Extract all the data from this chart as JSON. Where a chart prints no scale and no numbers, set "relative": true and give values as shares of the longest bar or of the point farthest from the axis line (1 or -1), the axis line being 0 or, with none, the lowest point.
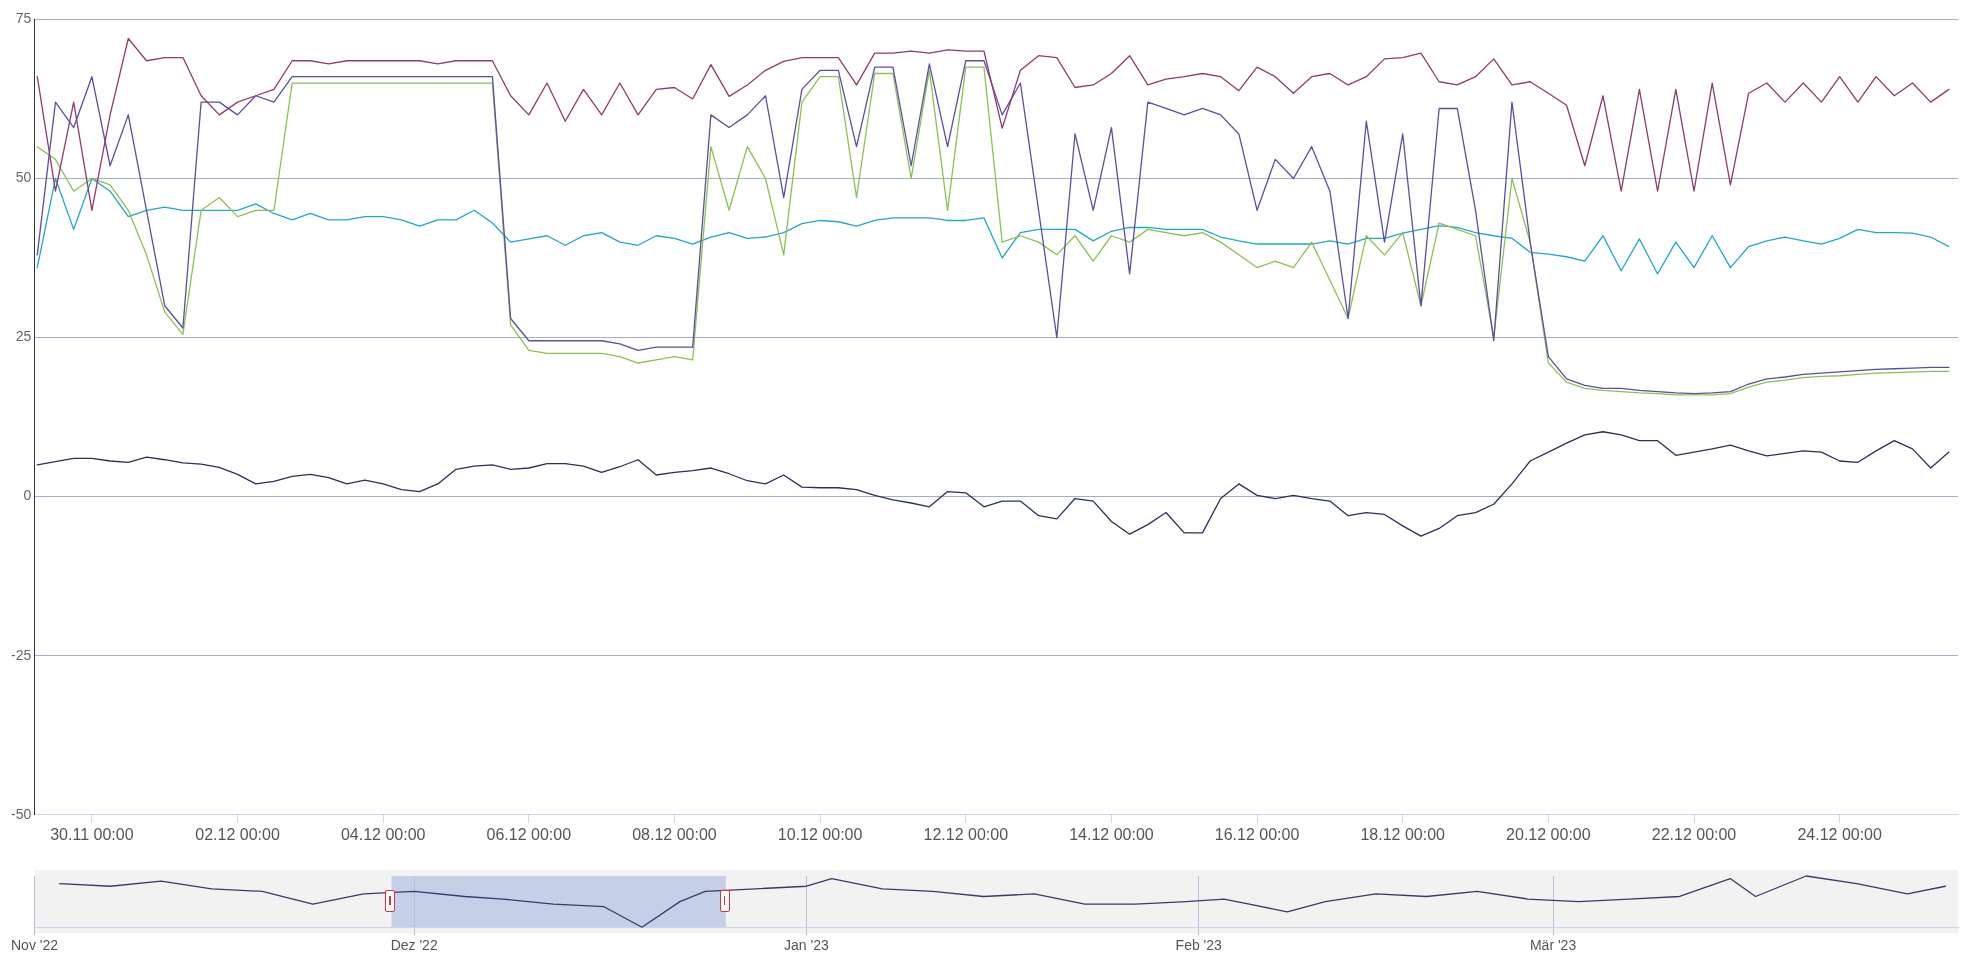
{
  "chart_data": [
    {
      "type": "line",
      "x": [
        "--11-29T06:00",
        "--11-29T12:00",
        "--11-29T18:00",
        "--11-30T00:00",
        "--11-30T06:00",
        "--11-30T12:00",
        "--11-30T18:00",
        "--12-01T00:00",
        "--12-01T06:00",
        "--12-01T12:00",
        "--12-01T18:00",
        "--12-02T00:00",
        "--12-02T06:00",
        "--12-02T12:00",
        "--12-02T18:00",
        "--12-03T00:00",
        "--12-03T06:00",
        "--12-03T12:00",
        "--12-03T18:00",
        "--12-04T00:00",
        "--12-04T06:00",
        "--12-04T12:00",
        "--12-04T18:00",
        "--12-05T00:00",
        "--12-05T06:00",
        "--12-05T12:00",
        "--12-05T18:00",
        "--12-06T00:00",
        "--12-06T06:00",
        "--12-06T12:00",
        "--12-06T18:00",
        "--12-07T00:00",
        "--12-07T06:00",
        "--12-07T12:00",
        "--12-07T18:00",
        "--12-08T00:00",
        "--12-08T06:00",
        "--12-08T12:00",
        "--12-08T18:00",
        "--12-09T00:00",
        "--12-09T06:00",
        "--12-09T12:00",
        "--12-09T18:00",
        "--12-10T00:00",
        "--12-10T06:00",
        "--12-10T12:00",
        "--12-10T18:00",
        "--12-11T00:00",
        "--12-11T06:00",
        "--12-11T12:00",
        "--12-11T18:00",
        "--12-12T00:00",
        "--12-12T06:00",
        "--12-12T12:00",
        "--12-12T18:00",
        "--12-13T00:00",
        "--12-13T06:00",
        "--12-13T12:00",
        "--12-13T18:00",
        "--12-14T00:00",
        "--12-14T06:00",
        "--12-14T12:00",
        "--12-14T18:00",
        "--12-15T00:00",
        "--12-15T06:00",
        "--12-15T12:00",
        "--12-15T18:00",
        "--12-16T00:00",
        "--12-16T06:00",
        "--12-16T12:00",
        "--12-16T18:00",
        "--12-17T00:00",
        "--12-17T06:00",
        "--12-17T12:00",
        "--12-17T18:00",
        "--12-18T00:00",
        "--12-18T06:00",
        "--12-18T12:00",
        "--12-18T18:00",
        "--12-19T00:00",
        "--12-19T06:00",
        "--12-19T12:00",
        "--12-19T18:00",
        "--12-20T00:00",
        "--12-20T06:00",
        "--12-20T12:00",
        "--12-20T18:00",
        "--12-21T00:00",
        "--12-21T06:00",
        "--12-21T12:00",
        "--12-21T18:00",
        "--12-22T00:00",
        "--12-22T06:00",
        "--12-22T12:00",
        "--12-22T18:00",
        "--12-23T00:00",
        "--12-23T06:00",
        "--12-23T12:00",
        "--12-23T18:00",
        "--12-24T00:00",
        "--12-24T06:00",
        "--12-24T12:00",
        "--12-24T18:00",
        "--12-25T00:00",
        "--12-25T06:00",
        "--12-25T12:00"
      ],
      "series": [
        {
          "color": "#8e3c6e",
          "values": [
            66,
            48,
            62,
            45,
            60,
            72,
            68.5,
            69,
            69,
            63,
            60,
            62,
            63,
            64,
            68.5,
            68.5,
            68,
            68.5,
            68.5,
            68.5,
            68.5,
            68.5,
            68,
            68.5,
            68.5,
            68.5,
            63,
            60,
            65,
            59,
            64,
            60,
            65,
            60,
            64,
            64.3,
            62.5,
            67.9,
            62.9,
            64.7,
            67,
            68.4,
            69,
            69,
            69,
            64.7,
            69.7,
            69.7,
            70,
            69.7,
            70.2,
            70,
            70,
            57.9,
            67,
            69.3,
            69,
            64.3,
            64.7,
            66.5,
            69.3,
            64.7,
            65.6,
            66,
            66.5,
            66,
            63.8,
            67.5,
            66,
            63.4,
            66,
            66.5,
            64.7,
            66,
            68.8,
            69,
            69.7,
            65.2,
            64.7,
            66,
            68.8,
            64.7,
            65.2,
            63.4,
            61.5,
            52,
            63,
            48,
            64,
            48,
            64,
            48,
            65,
            49,
            63.4,
            65,
            62,
            65,
            62,
            66,
            62,
            66,
            63,
            65,
            62,
            64
          ]
        },
        {
          "color": "#5b4ea6",
          "values": [
            38,
            62,
            58,
            66,
            52,
            60,
            45,
            30,
            26.5,
            62,
            62,
            60,
            63,
            62,
            66,
            66,
            66,
            66,
            66,
            66,
            66,
            66,
            66,
            66,
            66,
            66,
            28,
            24.5,
            24.5,
            24.5,
            24.5,
            24.5,
            24,
            23,
            23.5,
            23.5,
            23.5,
            60,
            58,
            60,
            63,
            47,
            64,
            67,
            67,
            55,
            67.5,
            67.5,
            52,
            68,
            55,
            68.5,
            68.5,
            60,
            65,
            45,
            25,
            57,
            45,
            58,
            35,
            62,
            61,
            60,
            61,
            60,
            57,
            45,
            53,
            50,
            55,
            48,
            28,
            59,
            40,
            57,
            30,
            61,
            61,
            45,
            24.5,
            62,
            40,
            22,
            18.5,
            17.5,
            17,
            17,
            16.7,
            16.5,
            16.3,
            16.2,
            16.3,
            16.5,
            17.7,
            18.5,
            18.8,
            19.2,
            19.4,
            19.6,
            19.8,
            20,
            20.1,
            20.2,
            20.3,
            20.3
          ]
        },
        {
          "color": "#8cc152",
          "values": [
            55,
            53,
            48,
            50,
            49,
            45,
            38,
            29,
            25.5,
            45,
            47,
            44,
            45,
            45,
            65,
            65,
            65,
            65,
            65,
            65,
            65,
            65,
            65,
            65,
            65,
            65,
            27,
            23,
            22.5,
            22.5,
            22.5,
            22.5,
            22,
            21,
            21.5,
            22,
            21.5,
            55,
            45,
            55,
            50,
            38,
            62,
            66,
            66,
            47,
            66.5,
            66.5,
            50,
            67,
            45,
            67.5,
            67.5,
            40,
            41,
            40,
            38,
            41,
            37,
            41,
            40,
            42,
            41.5,
            41,
            41.5,
            40,
            38,
            36,
            37,
            36,
            40,
            34,
            28,
            41,
            38,
            41.5,
            30,
            43,
            42,
            41,
            25,
            50,
            40,
            21,
            18,
            17,
            16.7,
            16.5,
            16.3,
            16.2,
            16,
            16,
            16,
            16.2,
            17.2,
            18,
            18.3,
            18.7,
            18.9,
            19,
            19.2,
            19.4,
            19.5,
            19.6,
            19.7,
            19.7
          ]
        },
        {
          "color": "#1ea7d0",
          "values": [
            36,
            50,
            42,
            50,
            48,
            44,
            45,
            45.5,
            45,
            45,
            45,
            45,
            46,
            44.5,
            43.5,
            44.5,
            43.5,
            43.5,
            44,
            44,
            43.5,
            42.5,
            43.5,
            43.5,
            45,
            43,
            40,
            40.5,
            41,
            39.5,
            41,
            41.5,
            40,
            39.5,
            41,
            40.6,
            39.7,
            40.8,
            41.5,
            40.6,
            40.8,
            41.5,
            42.9,
            43.4,
            43.2,
            42.5,
            43.4,
            43.8,
            43.8,
            43.8,
            43.4,
            43.4,
            43.8,
            37.5,
            41.5,
            42,
            42,
            42,
            40.2,
            41.7,
            42.3,
            42.3,
            42,
            42,
            42,
            40.8,
            40.2,
            39.7,
            39.7,
            39.7,
            39.7,
            40.2,
            39.7,
            40.6,
            40.6,
            41.4,
            42,
            42.6,
            42.3,
            41.5,
            41,
            40.6,
            38.4,
            38.1,
            37.7,
            37,
            41,
            35.5,
            40.5,
            35,
            40,
            36,
            41,
            36,
            39.3,
            40.2,
            40.8,
            40.2,
            39.7,
            40.6,
            42,
            41.5,
            41.5,
            41.4,
            40.8,
            39.3
          ]
        },
        {
          "color": "#2e2e5c",
          "values": [
            5,
            5.5,
            6,
            6,
            5.6,
            5.4,
            6.2,
            5.8,
            5.3,
            5.1,
            4.6,
            3.5,
            2,
            2.4,
            3.2,
            3.5,
            3,
            2,
            2.6,
            2,
            1.1,
            0.8,
            2,
            4.3,
            4.8,
            5,
            4.3,
            4.5,
            5.2,
            5.2,
            4.8,
            3.8,
            4.7,
            5.8,
            3.4,
            3.8,
            4.1,
            4.5,
            3.6,
            2.5,
            2,
            3.4,
            1.5,
            1.4,
            1.4,
            1.1,
            0.2,
            -0.5,
            -1,
            -1.6,
            0.8,
            0.6,
            -1.6,
            -0.7,
            -0.7,
            -3,
            -3.5,
            -0.3,
            -0.7,
            -3.9,
            -5.9,
            -4.4,
            -2.5,
            -5.7,
            -5.7,
            -0.3,
            2,
            0.2,
            -0.3,
            0.2,
            -0.3,
            -0.7,
            -3,
            -2.5,
            -2.8,
            -4.6,
            -6.2,
            -5,
            -3,
            -2.5,
            -1.2,
            2,
            5.6,
            7,
            8.4,
            9.7,
            10.2,
            9.7,
            8.8,
            8.8,
            6.5,
            7,
            7.5,
            8.1,
            7.2,
            6.4,
            6.8,
            7.2,
            7,
            5.6,
            5.4,
            7.2,
            8.8,
            7.5,
            4.5,
            7
          ]
        }
      ],
      "xlim": [
        "--11-29T05:00",
        "--12-25T15:00"
      ],
      "xticks": [
        {
          "value": "--11-30T00:00",
          "label": "30.11 00:00"
        },
        {
          "value": "--12-02T00:00",
          "label": "02.12 00:00"
        },
        {
          "value": "--12-04T00:00",
          "label": "04.12 00:00"
        },
        {
          "value": "--12-06T00:00",
          "label": "06.12 00:00"
        },
        {
          "value": "--12-08T00:00",
          "label": "08.12 00:00"
        },
        {
          "value": "--12-10T00:00",
          "label": "10.12 00:00"
        },
        {
          "value": "--12-12T00:00",
          "label": "12.12 00:00"
        },
        {
          "value": "--12-14T00:00",
          "label": "14.12 00:00"
        },
        {
          "value": "--12-16T00:00",
          "label": "16.12 00:00"
        },
        {
          "value": "--12-18T00:00",
          "label": "18.12 00:00"
        },
        {
          "value": "--12-20T00:00",
          "label": "20.12 00:00"
        },
        {
          "value": "--12-22T00:00",
          "label": "22.12 00:00"
        },
        {
          "value": "--12-24T00:00",
          "label": "24.12 00:00"
        }
      ],
      "ylim": [
        -50,
        75
      ],
      "yticks": [
        -50,
        -25,
        0,
        25,
        50,
        75
      ],
      "grid": "y"
    },
    {
      "type": "line",
      "relative": true,
      "tick_labels": "x",
      "grid": "x",
      "x": [
        "2022-11-03",
        "2022-11-07",
        "2022-11-11",
        "2022-11-15",
        "2022-11-19",
        "2022-11-23",
        "2022-11-27",
        "2022-12-01",
        "2022-12-05",
        "2022-12-08",
        "2022-12-12",
        "2022-12-16",
        "2022-12-19",
        "2022-12-22",
        "2022-12-24",
        "2022-12-28",
        "2023-01-01",
        "2023-01-03",
        "2023-01-07",
        "2023-01-11",
        "2023-01-15",
        "2023-01-19",
        "2023-01-23",
        "2023-01-27",
        "2023-01-31",
        "2023-02-03",
        "2023-02-05",
        "2023-02-08",
        "2023-02-11",
        "2023-02-15",
        "2023-02-19",
        "2023-02-23",
        "2023-02-27",
        "2023-03-03",
        "2023-03-07",
        "2023-03-11",
        "2023-03-15",
        "2023-03-17",
        "2023-03-21",
        "2023-03-25",
        "2023-03-29",
        "2023-04-01"
      ],
      "series": [
        {
          "color": "#3a3a6a",
          "values": [
            0.85,
            0.8,
            0.9,
            0.75,
            0.7,
            0.45,
            0.65,
            0.7,
            0.6,
            0.55,
            0.45,
            0.4,
            0,
            0.5,
            0.7,
            0.75,
            0.8,
            0.95,
            0.75,
            0.7,
            0.6,
            0.65,
            0.45,
            0.45,
            0.5,
            0.55,
            0.45,
            0.3,
            0.5,
            0.65,
            0.6,
            0.7,
            0.55,
            0.5,
            0.55,
            0.6,
            0.95,
            0.6,
            1,
            0.85,
            0.65,
            0.8
          ]
        }
      ],
      "xlim": [
        "2022-11-01",
        "2023-04-02"
      ],
      "xticks": [
        {
          "value": "2022-11",
          "label": "Nov '22"
        },
        {
          "value": "2022-12",
          "label": "Dez '22"
        },
        {
          "value": "2023-01",
          "label": "Jan '23"
        },
        {
          "value": "2023-02",
          "label": "Feb '23"
        },
        {
          "value": "2023-03",
          "label": "Mär '23"
        }
      ],
      "bands": [
        {
          "axis": "x",
          "from": "2022-11-29T05:00",
          "to": "2022-12-25T15:00",
          "color": "#c5cfe8"
        }
      ]
    }
  ]
}
